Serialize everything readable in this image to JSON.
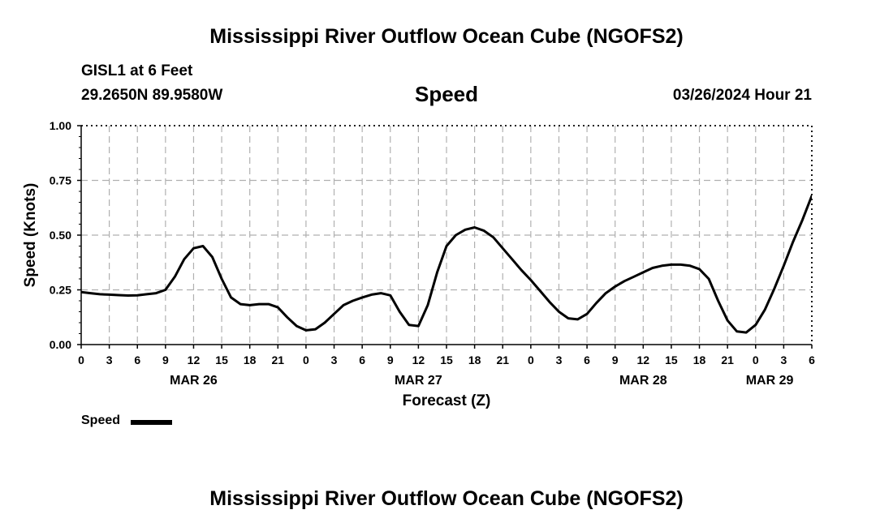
{
  "header": {
    "title": "Mississippi River Outflow Ocean Cube (NGOFS2)",
    "station": "GISL1 at 6 Feet",
    "coords": "29.2650N  89.9580W",
    "variable": "Speed",
    "datetime": "03/26/2024 Hour 21"
  },
  "footer": {
    "title": "Mississippi River Outflow Ocean Cube (NGOFS2)"
  },
  "legend": {
    "label": "Speed"
  },
  "colors": {
    "line": "#000000",
    "grid": "#b0b0b0",
    "axis": "#000000"
  },
  "chart_data": {
    "type": "line",
    "xlabel": "Forecast (Z)",
    "ylabel": "Speed (Knots)",
    "x_unit": "hours since 2024-03-26 00Z",
    "xlim": [
      0,
      78
    ],
    "ylim": [
      0,
      1.0
    ],
    "grid": true,
    "y_ticks": [
      0.0,
      0.25,
      0.5,
      0.75,
      1.0
    ],
    "y_tick_labels": [
      "0.00",
      "0.25",
      "0.50",
      "0.75",
      "1.00"
    ],
    "x_ticks": [
      0,
      3,
      6,
      9,
      12,
      15,
      18,
      21,
      24,
      27,
      30,
      33,
      36,
      39,
      42,
      45,
      48,
      51,
      54,
      57,
      60,
      63,
      66,
      69,
      72,
      75,
      78
    ],
    "x_tick_labels": [
      "0",
      "3",
      "6",
      "9",
      "12",
      "15",
      "18",
      "21",
      "0",
      "3",
      "6",
      "9",
      "12",
      "15",
      "18",
      "21",
      "0",
      "3",
      "6",
      "9",
      "12",
      "15",
      "18",
      "21",
      "0",
      "3",
      "6"
    ],
    "day_labels": [
      {
        "x": 12,
        "label": "MAR 26"
      },
      {
        "x": 36,
        "label": "MAR 27"
      },
      {
        "x": 60,
        "label": "MAR 28"
      },
      {
        "x": 73.5,
        "label": "MAR 29"
      }
    ],
    "series": [
      {
        "name": "Speed",
        "x": [
          0,
          1,
          2,
          3,
          4,
          5,
          6,
          7,
          8,
          9,
          10,
          11,
          12,
          13,
          14,
          15,
          16,
          17,
          18,
          19,
          20,
          21,
          22,
          23,
          24,
          25,
          26,
          27,
          28,
          29,
          30,
          31,
          32,
          33,
          34,
          35,
          36,
          37,
          38,
          39,
          40,
          41,
          42,
          43,
          44,
          45,
          46,
          47,
          48,
          49,
          50,
          51,
          52,
          53,
          54,
          55,
          56,
          57,
          58,
          59,
          60,
          61,
          62,
          63,
          64,
          65,
          66,
          67,
          68,
          69,
          70,
          71,
          72,
          73,
          74,
          75,
          76,
          77,
          78
        ],
        "values": [
          0.24,
          0.235,
          0.23,
          0.228,
          0.226,
          0.224,
          0.225,
          0.23,
          0.235,
          0.25,
          0.31,
          0.39,
          0.44,
          0.45,
          0.4,
          0.3,
          0.215,
          0.185,
          0.18,
          0.185,
          0.185,
          0.17,
          0.125,
          0.085,
          0.065,
          0.07,
          0.1,
          0.14,
          0.18,
          0.2,
          0.215,
          0.228,
          0.235,
          0.225,
          0.15,
          0.09,
          0.085,
          0.18,
          0.33,
          0.45,
          0.5,
          0.525,
          0.535,
          0.52,
          0.49,
          0.44,
          0.39,
          0.34,
          0.295,
          0.245,
          0.195,
          0.15,
          0.12,
          0.115,
          0.14,
          0.19,
          0.235,
          0.265,
          0.29,
          0.31,
          0.33,
          0.35,
          0.36,
          0.365,
          0.365,
          0.36,
          0.345,
          0.3,
          0.2,
          0.11,
          0.06,
          0.055,
          0.09,
          0.16,
          0.255,
          0.36,
          0.47,
          0.57,
          0.68
        ]
      }
    ]
  }
}
